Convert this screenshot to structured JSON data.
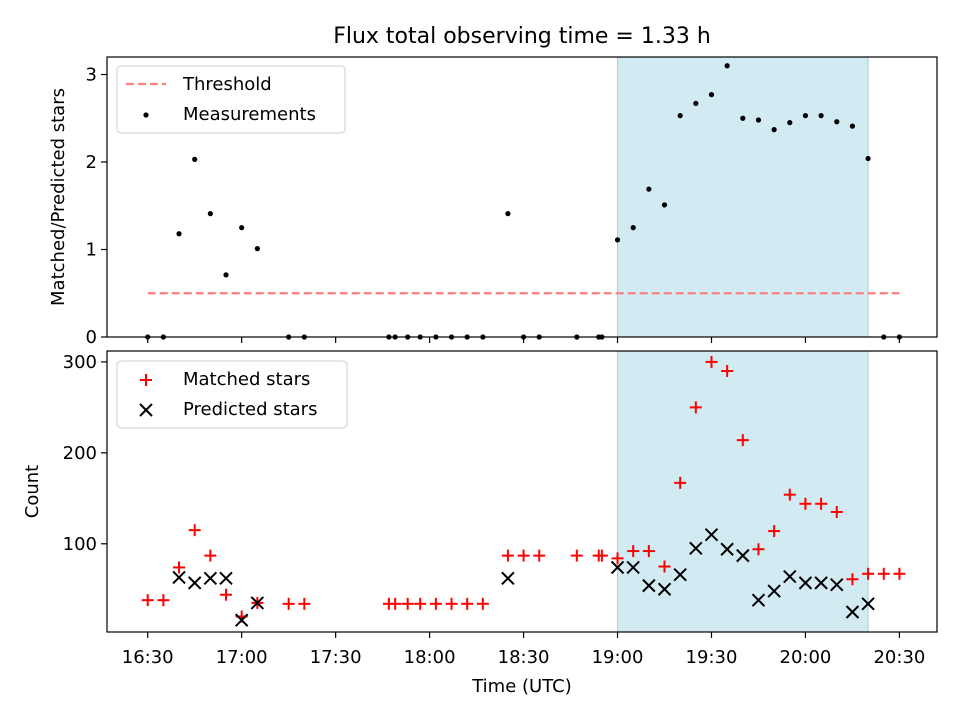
{
  "chart_data": [
    {
      "type": "scatter",
      "title": "Flux total observing time = 1.33 h",
      "xlabel": "",
      "ylabel": "Matched/Predicted stars",
      "ylim": [
        0,
        3.2
      ],
      "yticks": [
        0,
        1,
        2,
        3
      ],
      "legend_position": "top-left",
      "shaded_interval": [
        "19:00",
        "20:20"
      ],
      "shade_color": "#add8e6",
      "threshold": {
        "name": "Threshold",
        "value": 0.5,
        "from": "16:30",
        "to": "20:30",
        "color": "#ff7f7f"
      },
      "series": [
        {
          "name": "Measurements",
          "color": "#000000",
          "marker": "dot",
          "x": [
            "16:30",
            "16:35",
            "16:40",
            "16:45",
            "16:50",
            "16:55",
            "17:00",
            "17:05",
            "17:15",
            "17:20",
            "17:47",
            "17:49",
            "17:53",
            "17:57",
            "18:02",
            "18:07",
            "18:12",
            "18:17",
            "18:25",
            "18:30",
            "18:35",
            "18:47",
            "18:54",
            "18:55",
            "19:00",
            "19:05",
            "19:10",
            "19:15",
            "19:20",
            "19:25",
            "19:30",
            "19:35",
            "19:40",
            "19:45",
            "19:50",
            "19:55",
            "20:00",
            "20:05",
            "20:10",
            "20:15",
            "20:20",
            "20:25",
            "20:30"
          ],
          "y": [
            0,
            0,
            1.18,
            2.03,
            1.41,
            0.71,
            1.25,
            1.01,
            0,
            0,
            0,
            0,
            0,
            0,
            0,
            0,
            0,
            0,
            1.41,
            0,
            0,
            0,
            0,
            0,
            1.11,
            1.25,
            1.69,
            1.51,
            2.53,
            2.67,
            2.77,
            3.1,
            2.5,
            2.48,
            2.37,
            2.45,
            2.53,
            2.53,
            2.46,
            2.41,
            2.04,
            0,
            0
          ]
        }
      ]
    },
    {
      "type": "scatter",
      "title": "",
      "xlabel": "Time (UTC)",
      "ylabel": "Count",
      "ylim": [
        3,
        312
      ],
      "yticks": [
        100,
        200,
        300
      ],
      "xlim": [
        "16:17",
        "20:42"
      ],
      "xticks": [
        "16:30",
        "17:00",
        "17:30",
        "18:00",
        "18:30",
        "19:00",
        "19:30",
        "20:00",
        "20:30"
      ],
      "legend_position": "top-left",
      "shaded_interval": [
        "19:00",
        "20:20"
      ],
      "shade_color": "#add8e6",
      "series": [
        {
          "name": "Matched stars",
          "color": "#ff0000",
          "marker": "plus",
          "x": [
            "16:30",
            "16:35",
            "16:40",
            "16:45",
            "16:50",
            "16:55",
            "17:00",
            "17:05",
            "17:15",
            "17:20",
            "17:47",
            "17:49",
            "17:53",
            "17:57",
            "18:02",
            "18:07",
            "18:12",
            "18:17",
            "18:25",
            "18:30",
            "18:35",
            "18:47",
            "18:54",
            "18:55",
            "19:00",
            "19:05",
            "19:10",
            "19:15",
            "19:20",
            "19:25",
            "19:30",
            "19:35",
            "19:40",
            "19:45",
            "19:50",
            "19:55",
            "20:00",
            "20:05",
            "20:10",
            "20:15",
            "20:20",
            "20:25",
            "20:30"
          ],
          "y": [
            38,
            38,
            74,
            115,
            87,
            44,
            20,
            35,
            34,
            34,
            34,
            34,
            34,
            34,
            34,
            34,
            34,
            34,
            87,
            87,
            87,
            87,
            87,
            87,
            84,
            92,
            92,
            75,
            167,
            250,
            300,
            290,
            214,
            94,
            114,
            154,
            144,
            144,
            135,
            61,
            67,
            67,
            67
          ]
        },
        {
          "name": "Predicted stars",
          "color": "#000000",
          "marker": "x",
          "x": [
            "16:40",
            "16:45",
            "16:50",
            "16:55",
            "17:00",
            "17:05",
            "18:25",
            "19:00",
            "19:05",
            "19:10",
            "19:15",
            "19:20",
            "19:25",
            "19:30",
            "19:35",
            "19:40",
            "19:45",
            "19:50",
            "19:55",
            "20:00",
            "20:05",
            "20:10",
            "20:15",
            "20:20"
          ],
          "y": [
            63,
            57,
            62,
            62,
            16,
            35,
            62,
            74,
            74,
            54,
            50,
            66,
            95,
            110,
            94,
            87,
            38,
            48,
            64,
            57,
            57,
            55,
            25,
            34
          ]
        }
      ]
    }
  ]
}
